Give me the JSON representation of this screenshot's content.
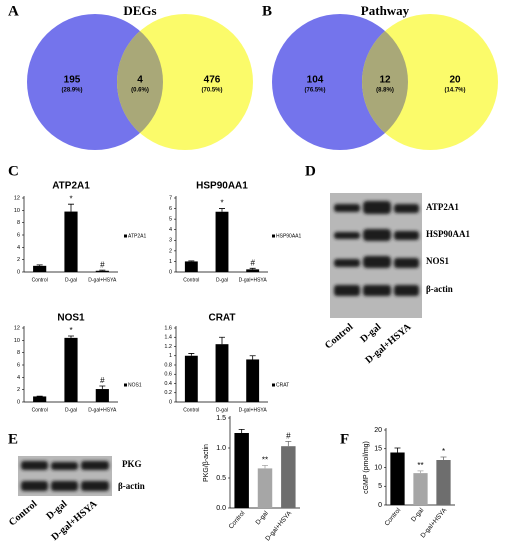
{
  "panels": [
    "A",
    "B",
    "C",
    "D",
    "E",
    "F"
  ],
  "venns": [
    {
      "title": "DEGs",
      "left": {
        "count": 195,
        "pct": "(28.9%)"
      },
      "middle": {
        "count": 4,
        "pct": "(0.6%)"
      },
      "right": {
        "count": 476,
        "pct": "(70.5%)"
      }
    },
    {
      "title": "Pathway",
      "left": {
        "count": 104,
        "pct": "(76.5%)"
      },
      "middle": {
        "count": 12,
        "pct": "(8.8%)"
      },
      "right": {
        "count": 20,
        "pct": "(14.7%)"
      }
    }
  ],
  "blot_d": {
    "labels": [
      "ATP2A1",
      "HSP90AA1",
      "NOS1",
      "β-actin"
    ],
    "lanes": [
      "Control",
      "D-gal",
      "D-gal+HSYA"
    ]
  },
  "blot_e": {
    "labels": [
      "PKG",
      "β-actin"
    ],
    "lanes": [
      "Control",
      "D-gal",
      "D-gal+HSYA"
    ]
  },
  "chart_data": [
    {
      "type": "bar",
      "title": "ATP2A1",
      "legend": "ATP2A1",
      "categories": [
        "Control",
        "D-gal",
        "D-gal+HSYA"
      ],
      "values": [
        1,
        9.8,
        0.2
      ],
      "errors": [
        0.15,
        1.2,
        0.1
      ],
      "annotations": [
        null,
        "*",
        "#"
      ],
      "color": "#000000",
      "ylim": [
        0,
        12
      ],
      "yticks": [
        0,
        2,
        4,
        6,
        8,
        10,
        12
      ]
    },
    {
      "type": "bar",
      "title": "HSP90AA1",
      "legend": "HSP90AA1",
      "categories": [
        "Control",
        "D-gal",
        "D-gal+HSYA"
      ],
      "values": [
        1,
        5.7,
        0.25
      ],
      "errors": [
        0.05,
        0.3,
        0.1
      ],
      "annotations": [
        null,
        "*",
        "#"
      ],
      "color": "#000000",
      "ylim": [
        0,
        7
      ],
      "yticks": [
        0,
        1,
        2,
        3,
        4,
        5,
        6,
        7
      ]
    },
    {
      "type": "bar",
      "title": "NOS1",
      "legend": "NOS1",
      "categories": [
        "Control",
        "D-gal",
        "D-gal+HSYA"
      ],
      "values": [
        0.9,
        10.4,
        2.1
      ],
      "errors": [
        0.05,
        0.3,
        0.5
      ],
      "annotations": [
        null,
        "*",
        "#"
      ],
      "color": "#000000",
      "ylim": [
        0,
        12
      ],
      "yticks": [
        0,
        2,
        4,
        6,
        8,
        10,
        12
      ]
    },
    {
      "type": "bar",
      "title": "CRAT",
      "legend": "CRAT",
      "categories": [
        "Control",
        "D-gal",
        "D-gal+HSYA"
      ],
      "values": [
        1,
        1.25,
        0.92
      ],
      "errors": [
        0.05,
        0.15,
        0.08
      ],
      "color": "#000000",
      "ylim": [
        0,
        1.6
      ],
      "yticks": [
        0,
        0.2,
        0.4,
        0.6,
        0.8,
        1,
        1.2,
        1.4,
        1.6
      ]
    },
    {
      "type": "bar",
      "y_label": "PKG/β-actin",
      "categories": [
        "Control",
        "D-gal",
        "D-gal+HSYA"
      ],
      "values": [
        1.25,
        0.66,
        1.03
      ],
      "errors": [
        0.06,
        0.05,
        0.08
      ],
      "annotations": [
        null,
        "**",
        "#"
      ],
      "colors": [
        "#000000",
        "#a6a6a6",
        "#6e6e6e"
      ],
      "ylim": [
        0,
        1.5
      ],
      "yticks": [
        {
          "value": 0,
          "label": "0.0"
        },
        {
          "value": 0.5,
          "label": "0.5"
        },
        {
          "value": 1,
          "label": "1.0"
        },
        {
          "value": 1.5,
          "label": "1.5"
        }
      ]
    },
    {
      "type": "bar",
      "y_label": "cGMP (pmol/mg)",
      "categories": [
        "Control",
        "D-gal",
        "D-gal+HSYA"
      ],
      "values": [
        14,
        8.5,
        12
      ],
      "errors": [
        1.2,
        0.6,
        0.8
      ],
      "annotations": [
        null,
        "**",
        "*"
      ],
      "colors": [
        "#000000",
        "#a6a6a6",
        "#6e6e6e"
      ],
      "ylim": [
        0,
        20
      ],
      "yticks": [
        0,
        5,
        10,
        15,
        20
      ]
    }
  ]
}
